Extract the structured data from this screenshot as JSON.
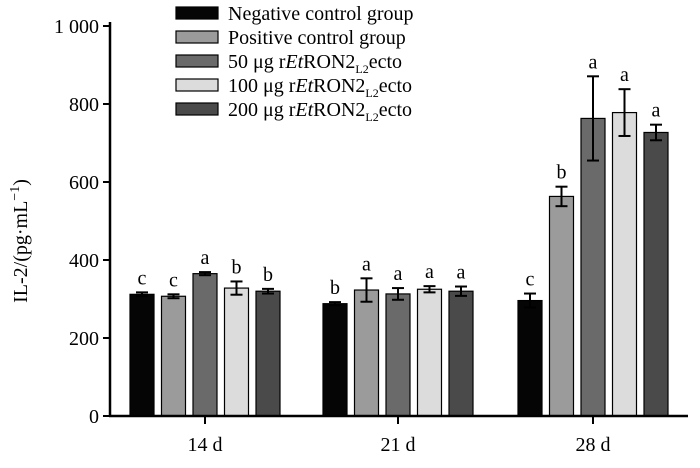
{
  "chart_data": {
    "type": "bar",
    "ylabel": {
      "main": "IL-2/(pg·mL",
      "exp": "−1",
      "close": ")"
    },
    "ylim": [
      0,
      1000
    ],
    "yticks": [
      {
        "value": 0,
        "label": "0"
      },
      {
        "value": 200,
        "label": "200"
      },
      {
        "value": 400,
        "label": "400"
      },
      {
        "value": 600,
        "label": "600"
      },
      {
        "value": 800,
        "label": "800"
      },
      {
        "value": 1000,
        "label": "1 000"
      }
    ],
    "categories": [
      "14 d",
      "21 d",
      "28 d"
    ],
    "legend_position": "top-left",
    "series": [
      {
        "name": "Negative control group",
        "legend": {
          "pre": "Negative control group",
          "ital": "",
          "mid": "",
          "sub": "",
          "post": ""
        },
        "color": "#050505",
        "values": [
          312,
          288,
          296
        ],
        "errors": [
          5,
          4,
          18
        ],
        "sig": [
          "c",
          "b",
          "c"
        ]
      },
      {
        "name": "Positive control group",
        "legend": {
          "pre": "Positive control group",
          "ital": "",
          "mid": "",
          "sub": "",
          "post": ""
        },
        "color": "#9b9b9b",
        "values": [
          307,
          323,
          563
        ],
        "errors": [
          5,
          30,
          25
        ],
        "sig": [
          "c",
          "a",
          "b"
        ]
      },
      {
        "name": "50 μg rEtRON2L2ecto",
        "legend": {
          "pre": "50 μg r",
          "ital": "Et",
          "mid": "RON2",
          "sub": "L2",
          "post": "ecto"
        },
        "color": "#6a6a6a",
        "values": [
          365,
          313,
          763
        ],
        "errors": [
          4,
          15,
          108
        ],
        "sig": [
          "a",
          "a",
          "a"
        ]
      },
      {
        "name": "100 μg rEtRON2L2ecto",
        "legend": {
          "pre": "100 μg r",
          "ital": "Et",
          "mid": "RON2",
          "sub": "L2",
          "post": "ecto"
        },
        "color": "#dcdcdc",
        "values": [
          328,
          325,
          778
        ],
        "errors": [
          17,
          8,
          60
        ],
        "sig": [
          "b",
          "a",
          "a"
        ]
      },
      {
        "name": "200 μg rEtRON2L2ecto",
        "legend": {
          "pre": "200 μg r",
          "ital": "Et",
          "mid": "RON2",
          "sub": "L2",
          "post": "ecto"
        },
        "color": "#4a4a4a",
        "values": [
          320,
          320,
          727
        ],
        "errors": [
          6,
          12,
          20
        ],
        "sig": [
          "b",
          "a",
          "a"
        ]
      }
    ]
  }
}
